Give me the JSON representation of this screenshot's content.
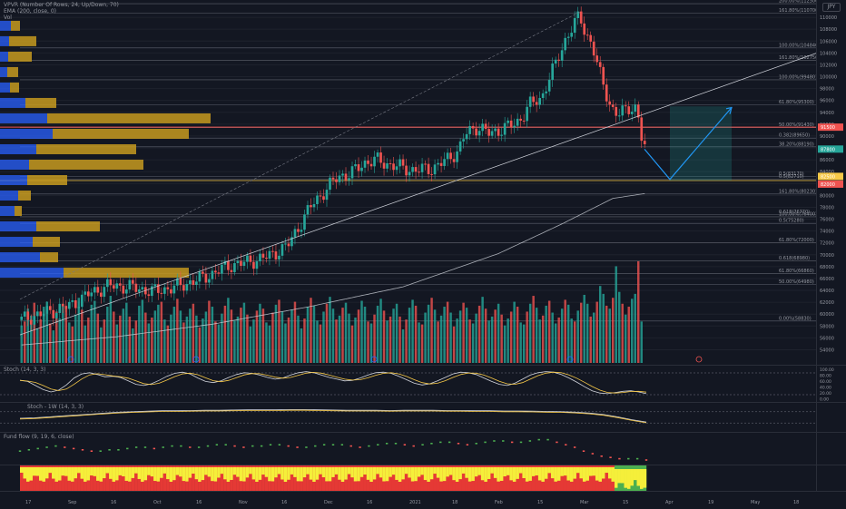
{
  "legend": {
    "vpvr": "VPVR (Number Of Rows, 24, Up/Down, 70)",
    "ema": "EMA (200, close, 0)",
    "vol": "Vol",
    "stoch": "Stoch (14, 3, 3)",
    "stoch_1w": "Stoch - 1W (14, 3, 3)",
    "fund_flow": "Fund flow (9, 19, 6, close)"
  },
  "scale_button": "JPY",
  "colors": {
    "up": "#26a69a",
    "down": "#ef5350",
    "vp_up": "#2962ff",
    "vp_down": "#c79a1e",
    "trend": "#d1d4dc",
    "target": "#2196f3",
    "fib": "#787b86",
    "support": "#f7c948"
  },
  "chart_data": {
    "type": "line",
    "title": "",
    "x_labels": [
      "17",
      "Sep",
      "16",
      "Oct",
      "16",
      "Nov",
      "16",
      "Dec",
      "16",
      "2021",
      "18",
      "Feb",
      "15",
      "Mar",
      "15",
      "Apr",
      "19",
      "May",
      "18"
    ],
    "price_axis": [
      "110000",
      "108000",
      "106000",
      "104000",
      "102000",
      "100000",
      "98000",
      "96000",
      "94000",
      "92000",
      "90000",
      "88000",
      "86000",
      "84000",
      "82000",
      "80000",
      "78000",
      "76000",
      "74000",
      "72000",
      "70000",
      "68000",
      "66000",
      "64000",
      "62000",
      "60000",
      "58000",
      "56000",
      "54000"
    ],
    "ylim": [
      53000,
      112000
    ],
    "last_price_tags": [
      "91500",
      "87800",
      "82500",
      "82000"
    ],
    "price_path_knots": [
      [
        0,
        59000
      ],
      [
        8,
        60200
      ],
      [
        16,
        61500
      ],
      [
        22,
        63500
      ],
      [
        28,
        64800
      ],
      [
        34,
        64600
      ],
      [
        42,
        63800
      ],
      [
        50,
        64700
      ],
      [
        58,
        66200
      ],
      [
        66,
        68200
      ],
      [
        72,
        68800
      ],
      [
        78,
        69700
      ],
      [
        84,
        71400
      ],
      [
        88,
        75000
      ],
      [
        92,
        78600
      ],
      [
        96,
        80800
      ],
      [
        100,
        83200
      ],
      [
        104,
        83600
      ],
      [
        108,
        85400
      ],
      [
        112,
        86000
      ],
      [
        116,
        85200
      ],
      [
        120,
        84700
      ],
      [
        124,
        84200
      ],
      [
        130,
        84600
      ],
      [
        134,
        85900
      ],
      [
        138,
        87600
      ],
      [
        140,
        90300
      ],
      [
        144,
        91600
      ],
      [
        148,
        90300
      ],
      [
        152,
        91400
      ],
      [
        156,
        92000
      ],
      [
        158,
        93300
      ],
      [
        160,
        95200
      ],
      [
        164,
        96300
      ],
      [
        166,
        99300
      ],
      [
        168,
        101500
      ],
      [
        170,
        104100
      ],
      [
        172,
        106800
      ],
      [
        174,
        108600
      ],
      [
        176,
        110200
      ],
      [
        178,
        107200
      ],
      [
        180,
        105400
      ],
      [
        182,
        101100
      ],
      [
        184,
        97800
      ],
      [
        186,
        94700
      ],
      [
        188,
        93500
      ],
      [
        190,
        94200
      ],
      [
        192,
        95000
      ],
      [
        194,
        94600
      ],
      [
        195,
        91300
      ],
      [
        196,
        88000
      ]
    ],
    "ema200_knots": [
      [
        0,
        54800
      ],
      [
        30,
        56200
      ],
      [
        60,
        58300
      ],
      [
        90,
        61200
      ],
      [
        120,
        64600
      ],
      [
        150,
        70200
      ],
      [
        170,
        75200
      ],
      [
        186,
        79500
      ],
      [
        196,
        80300
      ]
    ],
    "fib_levels": [
      {
        "label": "200.00%(112300)",
        "price": 112300
      },
      {
        "label": "161.80%(110700)",
        "price": 110700
      },
      {
        "label": "100.00%(104840)",
        "price": 104840
      },
      {
        "label": "161.80%(102750)",
        "price": 102750
      },
      {
        "label": "100.00%(99480)",
        "price": 99480
      },
      {
        "label": "61.80%(95300)",
        "price": 95300
      },
      {
        "label": "50.00%(91430)",
        "price": 91430
      },
      {
        "label": "0.382(89650)",
        "price": 89650
      },
      {
        "label": "38.20%(88190)",
        "price": 88190
      },
      {
        "label": "0.5(83170)",
        "price": 83170
      },
      {
        "label": "0.5(82710)",
        "price": 82710
      },
      {
        "label": "161.80%(80230)",
        "price": 80230
      },
      {
        "label": "0.618(76770)",
        "price": 76770
      },
      {
        "label": "0.5(75280)",
        "price": 75280
      },
      {
        "label": "100.00%(76400)",
        "price": 76400
      },
      {
        "label": "61.80%(72000)",
        "price": 72000
      },
      {
        "label": "0.618(68980)",
        "price": 68980
      },
      {
        "label": "61.80%(66860)",
        "price": 66860
      },
      {
        "label": "50.00%(64980)",
        "price": 64980
      },
      {
        "label": "0.00%(58830)",
        "price": 58830
      }
    ],
    "volume_profile": [
      {
        "price": 108500,
        "up": 12,
        "down": 10
      },
      {
        "price": 105900,
        "up": 10,
        "down": 30
      },
      {
        "price": 103300,
        "up": 9,
        "down": 26
      },
      {
        "price": 100700,
        "up": 8,
        "down": 12
      },
      {
        "price": 98100,
        "up": 11,
        "down": 10
      },
      {
        "price": 95500,
        "up": 28,
        "down": 34
      },
      {
        "price": 92900,
        "up": 52,
        "down": 180
      },
      {
        "price": 90300,
        "up": 58,
        "down": 150
      },
      {
        "price": 87700,
        "up": 40,
        "down": 110
      },
      {
        "price": 85100,
        "up": 32,
        "down": 126
      },
      {
        "price": 82500,
        "up": 30,
        "down": 44
      },
      {
        "price": 79900,
        "up": 20,
        "down": 14
      },
      {
        "price": 77300,
        "up": 16,
        "down": 8
      },
      {
        "price": 74700,
        "up": 40,
        "down": 70
      },
      {
        "price": 72100,
        "up": 36,
        "down": 30
      },
      {
        "price": 69500,
        "up": 44,
        "down": 20
      },
      {
        "price": 66900,
        "up": 70,
        "down": 138
      }
    ],
    "volume_series": [
      38,
      42,
      55,
      48,
      61,
      35,
      44,
      57,
      62,
      40,
      33,
      52,
      45,
      60,
      58,
      41,
      37,
      49,
      66,
      54,
      38,
      46,
      59,
      63,
      50,
      36,
      44,
      57,
      68,
      52,
      39,
      48,
      55,
      61,
      47,
      35,
      43,
      58,
      64,
      51,
      40,
      46,
      53,
      59,
      62,
      44,
      38,
      49,
      57,
      65,
      53,
      41,
      47,
      55,
      60,
      48,
      36,
      45,
      52,
      63,
      57,
      42,
      39,
      50,
      58,
      66,
      54,
      43,
      47,
      56,
      61,
      49,
      37,
      44,
      53,
      60,
      55,
      41,
      38,
      51,
      59,
      64,
      52,
      40,
      46,
      54,
      62,
      48,
      35,
      45,
      57,
      66,
      58,
      43,
      39,
      52,
      60,
      67,
      55,
      44,
      48,
      56,
      61,
      50,
      38,
      46,
      54,
      63,
      57,
      42,
      40,
      49,
      58,
      65,
      53,
      43,
      47,
      55,
      60,
      47,
      34,
      44,
      56,
      64,
      58,
      41,
      39,
      51,
      59,
      66,
      54,
      42,
      48,
      57,
      62,
      51,
      37,
      45,
      53,
      61,
      56,
      44,
      40,
      50,
      58,
      67,
      55,
      43,
      47,
      54,
      60,
      49,
      38,
      45,
      52,
      62,
      57,
      41,
      39,
      52,
      60,
      68,
      56,
      44,
      48,
      58,
      63,
      51,
      40,
      46,
      55,
      64,
      59,
      45,
      42,
      53,
      61,
      69,
      60,
      47,
      51,
      62,
      78,
      70,
      58,
      55,
      66,
      98,
      72,
      60,
      49,
      57,
      65,
      70,
      103,
      42
    ],
    "stoch_k": [
      62,
      58,
      44,
      30,
      22,
      28,
      46,
      70,
      84,
      88,
      82,
      74,
      76,
      72,
      60,
      48,
      44,
      50,
      62,
      76,
      86,
      90,
      84,
      70,
      58,
      54,
      60,
      72,
      82,
      88,
      86,
      80,
      72,
      66,
      70,
      80,
      88,
      92,
      88,
      80,
      72,
      66,
      60,
      62,
      70,
      80,
      88,
      90,
      86,
      76,
      64,
      52,
      46,
      50,
      60,
      72,
      84,
      90,
      88,
      82,
      70,
      58,
      48,
      44,
      52,
      66,
      80,
      88,
      92,
      90,
      82,
      70,
      56,
      40,
      26,
      18,
      16,
      20,
      24,
      26,
      22,
      16
    ],
    "stoch_1w": [
      46,
      48,
      52,
      56,
      60,
      64,
      68,
      72,
      74,
      76,
      78,
      78,
      79,
      80,
      80,
      81,
      82,
      82,
      82,
      83,
      83,
      82,
      81,
      80,
      80,
      80,
      79,
      80,
      80,
      80,
      79,
      79,
      78,
      78,
      77,
      77,
      76,
      75,
      74,
      72,
      68,
      62,
      52,
      40,
      30
    ],
    "fund_flow": [
      9,
      10,
      11,
      12,
      13,
      12,
      11,
      10,
      9,
      9,
      10,
      10,
      11,
      12,
      12,
      11,
      12,
      13,
      13,
      12,
      12,
      13,
      14,
      14,
      13,
      12,
      13,
      13,
      14,
      14,
      13,
      12,
      12,
      13,
      14,
      14,
      14,
      13,
      12,
      13,
      14,
      15,
      15,
      14,
      13,
      14,
      15,
      16,
      16,
      15,
      14,
      15,
      16,
      17,
      17,
      16,
      16,
      17,
      18,
      18,
      16,
      14,
      12,
      9,
      7,
      5,
      4,
      3,
      3,
      3,
      2
    ]
  }
}
